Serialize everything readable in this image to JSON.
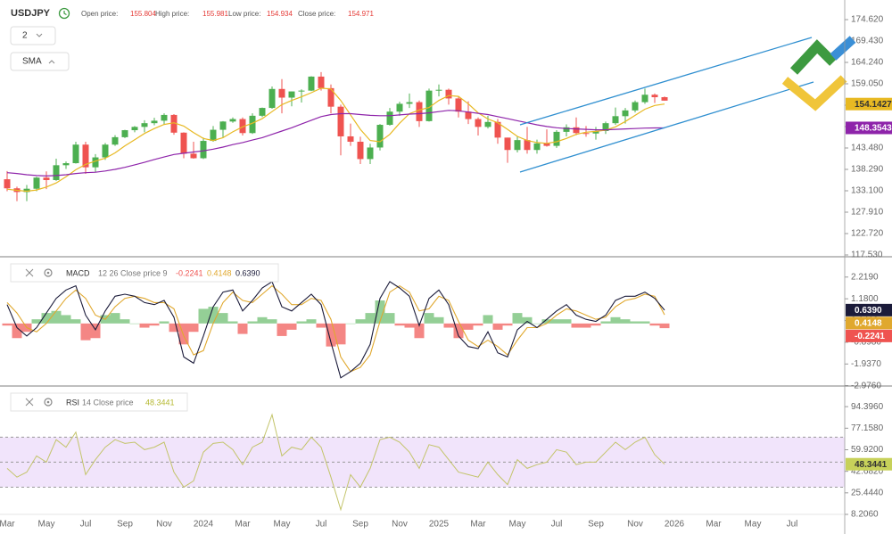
{
  "header": {
    "symbol": "USDJPY",
    "open_label": "Open price:",
    "high_label": "High price:",
    "low_label": "Low price:",
    "close_label": "Close price:",
    "interval": "2",
    "indicator_button": "SMA"
  },
  "chart_data": [
    {
      "type": "candlestick",
      "up_color": "#4caf50",
      "down_color": "#ef5350",
      "open": [
        135.9,
        133.7,
        132.8,
        133.6,
        136.3,
        135.7,
        139.3,
        139.8,
        144.3,
        138.8,
        141.2,
        144.3,
        146.1,
        147.8,
        148.6,
        149.5,
        150.1,
        151.5,
        147.2,
        142.1,
        141.0,
        145.2,
        147.9,
        149.9,
        150.5,
        147.1,
        151.3,
        153.2,
        157.8,
        155.7,
        157.2,
        157.4,
        160.8,
        158.0,
        153.5,
        146.3,
        145.0,
        140.8,
        143.6,
        149.1,
        152.3,
        154.2,
        154.6,
        150.0,
        157.4,
        157.6,
        155.5,
        152.3,
        150.5,
        148.6,
        149.8,
        146.0,
        143.0,
        145.4,
        143.0,
        144.6,
        144.0,
        147.4,
        148.5,
        147.1,
        147.0,
        147.6,
        149.5,
        151.2,
        152.6,
        154.6,
        156.4,
        155.804
      ],
      "high": [
        137.9,
        134.1,
        134.5,
        136.5,
        137.8,
        140.9,
        140.2,
        145.0,
        145.0,
        142.0,
        144.7,
        146.6,
        147.9,
        148.8,
        150.2,
        150.8,
        151.9,
        151.7,
        147.3,
        145.0,
        146.0,
        148.8,
        150.0,
        150.9,
        150.9,
        151.9,
        153.3,
        158.4,
        160.2,
        157.2,
        157.7,
        160.9,
        161.9,
        158.9,
        154.0,
        149.4,
        146.2,
        144.5,
        149.3,
        153.2,
        154.7,
        156.7,
        155.0,
        157.9,
        158.9,
        157.9,
        155.9,
        154.8,
        150.9,
        151.3,
        150.5,
        146.0,
        146.2,
        148.6,
        145.5,
        148.0,
        147.8,
        149.2,
        150.9,
        148.8,
        148.6,
        149.9,
        153.3,
        153.2,
        155.0,
        157.9,
        156.7,
        155.981
      ],
      "low": [
        133.0,
        130.6,
        130.6,
        133.0,
        133.5,
        135.5,
        138.4,
        139.7,
        137.2,
        137.6,
        140.6,
        144.0,
        145.9,
        147.3,
        147.3,
        149.0,
        149.2,
        146.7,
        141.0,
        140.9,
        140.8,
        145.0,
        145.9,
        149.6,
        146.5,
        146.9,
        151.0,
        153.0,
        151.9,
        153.6,
        154.5,
        157.3,
        157.4,
        151.9,
        141.7,
        144.0,
        139.6,
        139.6,
        142.9,
        148.9,
        151.3,
        153.2,
        148.6,
        149.9,
        156.0,
        154.0,
        150.9,
        149.3,
        146.5,
        148.2,
        144.5,
        139.9,
        142.4,
        142.1,
        142.1,
        143.8,
        143.5,
        146.3,
        146.6,
        146.2,
        145.5,
        146.9,
        149.1,
        149.4,
        152.1,
        154.2,
        154.4,
        154.934
      ],
      "close": [
        133.7,
        132.8,
        133.6,
        136.3,
        135.7,
        139.3,
        139.8,
        144.3,
        138.8,
        141.2,
        144.3,
        146.1,
        147.8,
        148.6,
        149.5,
        150.1,
        151.5,
        147.2,
        142.1,
        141.0,
        145.2,
        147.9,
        149.9,
        150.5,
        147.1,
        151.3,
        153.2,
        157.8,
        155.7,
        157.2,
        157.4,
        160.8,
        158.0,
        153.5,
        146.3,
        145.0,
        140.8,
        143.6,
        149.1,
        152.3,
        154.2,
        154.6,
        150.0,
        157.4,
        157.6,
        155.5,
        152.3,
        150.5,
        148.6,
        149.8,
        146.0,
        143.0,
        145.4,
        143.0,
        144.6,
        144.0,
        147.4,
        148.5,
        147.1,
        147.0,
        147.6,
        149.5,
        151.2,
        152.6,
        154.6,
        156.4,
        155.8,
        154.971
      ],
      "series": [
        {
          "color": "#e8b923",
          "badge_text_color": "#333333",
          "values": [
            133.5,
            133.2,
            133.0,
            133.3,
            134.0,
            135.0,
            136.5,
            138.2,
            139.5,
            140.3,
            141.0,
            142.3,
            144.0,
            145.5,
            147.0,
            148.2,
            149.2,
            149.6,
            148.8,
            147.2,
            145.8,
            145.3,
            146.0,
            147.4,
            148.6,
            149.5,
            150.6,
            152.3,
            154.0,
            155.0,
            155.9,
            156.9,
            158.0,
            157.8,
            155.0,
            151.5,
            148.0,
            145.3,
            145.0,
            146.8,
            149.5,
            151.8,
            152.7,
            153.3,
            155.0,
            156.2,
            156.0,
            154.2,
            152.0,
            150.5,
            149.6,
            148.0,
            146.3,
            145.3,
            144.8,
            144.6,
            145.0,
            145.8,
            146.8,
            147.3,
            147.5,
            147.8,
            148.6,
            149.9,
            151.4,
            152.9,
            153.8,
            154.1427
          ]
        },
        {
          "color": "#8e24aa",
          "badge_text_color": "#ffffff",
          "values": [
            137.5,
            137.3,
            137.0,
            136.8,
            136.7,
            136.8,
            137.0,
            137.3,
            137.5,
            137.6,
            137.9,
            138.3,
            138.8,
            139.4,
            140.0,
            140.7,
            141.3,
            141.9,
            142.2,
            142.5,
            142.8,
            143.2,
            143.7,
            144.3,
            144.8,
            145.4,
            146.0,
            146.8,
            147.6,
            148.4,
            149.3,
            150.2,
            151.1,
            151.6,
            151.8,
            151.8,
            151.6,
            151.4,
            151.3,
            151.3,
            151.5,
            151.7,
            151.8,
            152.0,
            152.3,
            152.6,
            152.5,
            152.2,
            151.9,
            151.6,
            151.1,
            150.6,
            150.1,
            149.6,
            149.1,
            148.7,
            148.4,
            148.2,
            148.1,
            148.0,
            147.9,
            147.9,
            148.0,
            148.1,
            148.2,
            148.3,
            148.35,
            148.3543
          ]
        }
      ],
      "ylim": [
        117.1,
        179.38
      ],
      "yticks": [
        {
          "value": 117.53,
          "label": "117.530"
        },
        {
          "value": 122.72,
          "label": "122.720"
        },
        {
          "value": 127.91,
          "label": "127.910"
        },
        {
          "value": 133.1,
          "label": "133.100"
        },
        {
          "value": 138.29,
          "label": "138.290"
        },
        {
          "value": 143.48,
          "label": "143.480"
        },
        {
          "value": 148.67,
          "label": "148.670"
        },
        {
          "value": 153.86,
          "label": "153.860"
        },
        {
          "value": 159.05,
          "label": "159.050"
        },
        {
          "value": 164.24,
          "label": "164.240"
        },
        {
          "value": 169.43,
          "label": "169.430"
        },
        {
          "value": 174.62,
          "label": "174.620"
        }
      ]
    },
    {
      "type": "macd",
      "name": "MACD",
      "params": "12 26 Close price 9",
      "series": [
        {
          "style": "histogram",
          "color": "#ef5350",
          "up_color": "#66bb6a",
          "badge_text_color": "#ffffff",
          "values": [
            -0.1,
            -0.7,
            -0.4,
            0.2,
            0.5,
            0.6,
            0.4,
            0.2,
            -0.8,
            -0.7,
            0.4,
            0.5,
            0.2,
            0.0,
            -0.2,
            -0.1,
            0.1,
            -0.4,
            -1.0,
            -0.4,
            0.7,
            0.8,
            0.5,
            0.1,
            -0.5,
            0.1,
            0.3,
            0.2,
            -0.6,
            -0.3,
            0.1,
            0.2,
            -0.2,
            -1.1,
            -1.0,
            0.0,
            0.2,
            0.5,
            1.1,
            0.5,
            -0.1,
            -0.2,
            -0.7,
            0.5,
            0.3,
            -0.2,
            -0.7,
            -0.3,
            -0.1,
            0.4,
            -0.3,
            -0.1,
            0.5,
            0.3,
            0.0,
            0.2,
            0.2,
            0.2,
            -0.2,
            -0.2,
            -0.1,
            0.1,
            0.3,
            0.2,
            0.1,
            0.1,
            -0.1,
            -0.2241
          ]
        },
        {
          "style": "line",
          "color": "#e0a82e",
          "badge_text_color": "#ffffff",
          "values": [
            1.0,
            0.5,
            -0.2,
            -0.4,
            0.0,
            0.6,
            1.2,
            1.6,
            1.2,
            0.4,
            0.2,
            0.8,
            1.2,
            1.3,
            1.2,
            1.0,
            1.0,
            0.7,
            -0.6,
            -1.5,
            -1.3,
            0.0,
            1.0,
            1.5,
            1.1,
            1.0,
            1.4,
            1.8,
            1.4,
            0.9,
            0.9,
            1.2,
            1.1,
            0.2,
            -1.6,
            -2.3,
            -2.1,
            -1.5,
            0.1,
            1.5,
            1.8,
            1.5,
            0.6,
            0.7,
            1.3,
            1.1,
            0.1,
            -0.8,
            -1.1,
            -0.8,
            -1.1,
            -1.5,
            -0.8,
            -0.2,
            -0.2,
            0.0,
            0.4,
            0.7,
            0.6,
            0.4,
            0.2,
            0.3,
            0.8,
            1.1,
            1.2,
            1.4,
            1.3,
            0.4148
          ]
        },
        {
          "style": "line",
          "color": "#1b1b3a",
          "badge_text_color": "#ffffff",
          "last_label": "0.6390",
          "values": [
            0.9,
            -0.2,
            -0.6,
            -0.2,
            0.5,
            1.2,
            1.6,
            1.8,
            0.4,
            -0.3,
            0.6,
            1.3,
            1.4,
            1.3,
            1.0,
            0.9,
            1.1,
            0.3,
            -1.6,
            -1.9,
            -0.6,
            0.8,
            1.5,
            1.6,
            0.6,
            1.1,
            1.7,
            2.0,
            0.8,
            0.6,
            1.0,
            1.4,
            0.9,
            -0.9,
            -2.6,
            -2.3,
            -1.9,
            -1.0,
            1.2,
            2.0,
            1.7,
            1.3,
            -0.1,
            1.2,
            1.6,
            0.9,
            -0.6,
            -1.1,
            -1.2,
            -0.4,
            -1.4,
            -1.6,
            -0.3,
            0.1,
            -0.2,
            0.2,
            0.6,
            0.9,
            0.4,
            0.2,
            0.1,
            0.4,
            1.1,
            1.3,
            1.3,
            1.5,
            1.2,
            0.639
          ]
        }
      ],
      "ylim": [
        -2.99,
        3.19
      ],
      "yticks": [
        {
          "value": -2.976,
          "label": "-2.9760"
        },
        {
          "value": -1.937,
          "label": "-1.9370"
        },
        {
          "value": -0.898,
          "label": "-0.8980"
        },
        {
          "value": 0.141,
          "label": "0.1410"
        },
        {
          "value": 1.18,
          "label": "1.1800"
        },
        {
          "value": 2.219,
          "label": "2.2190"
        }
      ]
    },
    {
      "type": "rsi",
      "name": "RSI",
      "params": "14 Close price",
      "color": "#c3c46a",
      "badge_color": "#c7d15a",
      "band": [
        30,
        70
      ],
      "midline": 50,
      "band_color": "#f1e4fb",
      "categories": [
        "Mar",
        null,
        null,
        null,
        "May",
        null,
        null,
        null,
        "Jul",
        null,
        null,
        null,
        "Sep",
        null,
        null,
        null,
        "Nov",
        null,
        null,
        null,
        "2024",
        null,
        null,
        null,
        "Mar",
        null,
        null,
        null,
        "May",
        null,
        null,
        null,
        "Jul",
        null,
        null,
        null,
        "Sep",
        null,
        null,
        null,
        "Nov",
        null,
        null,
        null,
        "2025",
        null,
        null,
        null,
        "Mar",
        null,
        null,
        null,
        "May",
        null,
        null,
        null,
        "Jul",
        null,
        null,
        null,
        "Sep",
        null,
        null,
        null,
        "Nov",
        null,
        null,
        null,
        "2026",
        null,
        null,
        null,
        "Mar",
        null,
        null,
        null,
        "May",
        null,
        null,
        null,
        "Jul"
      ],
      "values": [
        45,
        38,
        42,
        55,
        50,
        68,
        62,
        74,
        40,
        52,
        62,
        68,
        65,
        66,
        60,
        62,
        66,
        42,
        30,
        35,
        58,
        65,
        66,
        60,
        48,
        62,
        66,
        88,
        55,
        62,
        60,
        70,
        62,
        38,
        12,
        40,
        30,
        45,
        68,
        70,
        66,
        58,
        45,
        64,
        62,
        52,
        42,
        40,
        38,
        50,
        40,
        32,
        52,
        45,
        48,
        50,
        60,
        58,
        48,
        50,
        50,
        58,
        66,
        60,
        66,
        70,
        56,
        48.3441,
        null,
        null,
        null,
        null,
        null,
        null,
        null,
        null,
        null,
        null,
        null,
        null,
        null
      ],
      "ylim": [
        8.206,
        110.9
      ],
      "yticks": [
        {
          "value": 8.206,
          "label": "8.2060"
        },
        {
          "value": 25.444,
          "label": "25.4440"
        },
        {
          "value": 42.682,
          "label": "42.6820"
        },
        {
          "value": 59.92,
          "label": "59.9200"
        },
        {
          "value": 77.158,
          "label": "77.1580"
        },
        {
          "value": 94.396,
          "label": "94.3960"
        }
      ]
    }
  ]
}
